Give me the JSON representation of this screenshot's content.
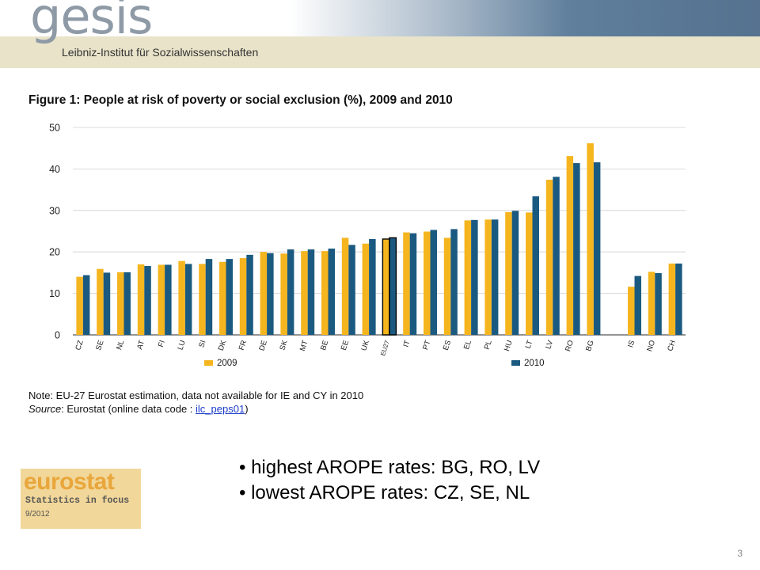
{
  "header": {
    "logo": "gesis",
    "subtitle": "Leibniz-Institut für Sozialwissenschaften"
  },
  "figure": {
    "title": "Figure 1: People at risk of poverty or social exclusion (%), 2009 and 2010"
  },
  "chart_data": {
    "type": "bar",
    "title": "Figure 1: People at risk of poverty or social exclusion (%), 2009 and 2010",
    "categories": [
      "CZ",
      "SE",
      "NL",
      "AT",
      "FI",
      "LU",
      "SI",
      "DK",
      "FR",
      "DE",
      "SK",
      "MT",
      "BE",
      "EE",
      "UK",
      "EU27",
      "IT",
      "PT",
      "ES",
      "EL",
      "PL",
      "HU",
      "LT",
      "LV",
      "RO",
      "BG",
      "",
      "IS",
      "NO",
      "CH"
    ],
    "series": [
      {
        "name": "2009",
        "color": "#f5b51e",
        "values": [
          14.0,
          15.9,
          15.1,
          17.0,
          16.9,
          17.8,
          17.1,
          17.6,
          18.5,
          20.0,
          19.6,
          20.2,
          20.2,
          23.4,
          22.0,
          23.1,
          24.7,
          24.9,
          23.4,
          27.6,
          27.8,
          29.6,
          29.5,
          37.4,
          43.1,
          46.2,
          null,
          11.6,
          15.2,
          17.2
        ]
      },
      {
        "name": "2010",
        "color": "#1b5a80",
        "values": [
          14.4,
          15.0,
          15.1,
          16.6,
          16.9,
          17.1,
          18.3,
          18.3,
          19.3,
          19.7,
          20.6,
          20.6,
          20.8,
          21.7,
          23.1,
          23.4,
          24.5,
          25.3,
          25.5,
          27.7,
          27.8,
          29.9,
          33.4,
          38.1,
          41.4,
          41.6,
          null,
          14.2,
          14.9,
          17.2
        ]
      }
    ],
    "highlight_category": "EU27",
    "ylim": [
      0,
      50
    ],
    "yticks": [
      0,
      10,
      20,
      30,
      40,
      50
    ],
    "grid": true,
    "legend_position": "bottom"
  },
  "note": {
    "text": "Note: EU-27 Eurostat estimation, data not available for IE and CY in 2010",
    "source_label": "Source",
    "source_text": ": Eurostat (online data code : ",
    "source_link": "ilc_peps01",
    "source_end": ")"
  },
  "eurostat": {
    "logo": "eurostat",
    "subtitle": "Statistics in focus",
    "date": "9/2012"
  },
  "bullets": [
    "• highest AROPE rates: BG, RO, LV",
    "• lowest AROPE rates: CZ, SE, NL"
  ],
  "page_number": "3"
}
